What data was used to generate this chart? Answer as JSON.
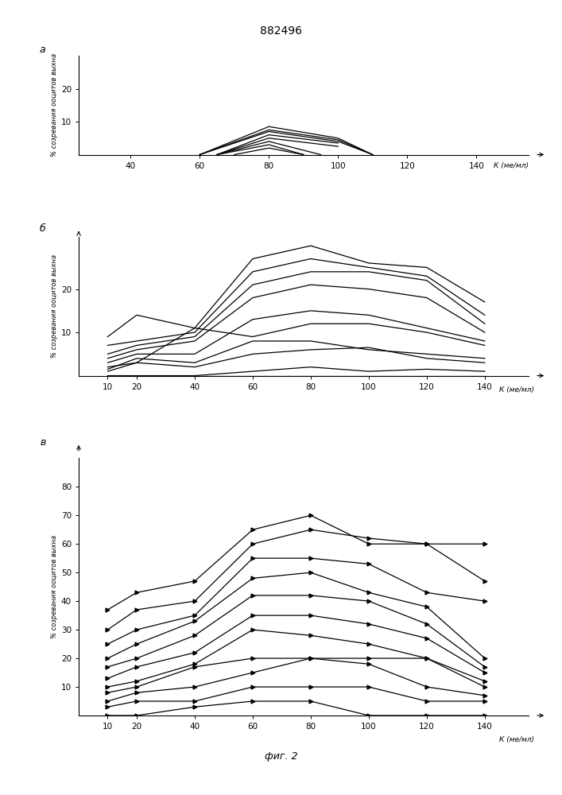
{
  "title": "882496",
  "fig_label": "фиг. 2",
  "ylabel": "% созревания ооцитов выхна",
  "xlabel": "К (ме/мл)",
  "panel_labels": [
    "а",
    "б",
    "в"
  ],
  "panel_a": {
    "xlim": [
      25,
      155
    ],
    "ylim": [
      0,
      30
    ],
    "xticks": [
      40,
      60,
      80,
      100,
      120,
      140
    ],
    "yticks": [
      10,
      20
    ],
    "lines": [
      {
        "x": [
          60,
          80,
          100,
          110
        ],
        "y": [
          0,
          8.5,
          5,
          0
        ]
      },
      {
        "x": [
          60,
          80,
          100,
          110
        ],
        "y": [
          0,
          7.5,
          4.5,
          0
        ]
      },
      {
        "x": [
          60,
          80,
          100,
          110
        ],
        "y": [
          0,
          7.0,
          4.0,
          0
        ]
      },
      {
        "x": [
          65,
          80,
          100
        ],
        "y": [
          0,
          6.0,
          3.5
        ]
      },
      {
        "x": [
          65,
          80,
          100
        ],
        "y": [
          0,
          5.0,
          2.5
        ]
      },
      {
        "x": [
          65,
          80,
          95
        ],
        "y": [
          0,
          4.0,
          0
        ]
      },
      {
        "x": [
          65,
          80,
          90
        ],
        "y": [
          0,
          3.0,
          0
        ]
      },
      {
        "x": [
          70,
          80,
          90
        ],
        "y": [
          0,
          2.0,
          0
        ]
      }
    ]
  },
  "panel_b": {
    "xlim": [
      0,
      155
    ],
    "ylim": [
      0,
      32
    ],
    "xticks": [
      10,
      20,
      40,
      60,
      80,
      100,
      120,
      140
    ],
    "yticks": [
      10,
      20
    ],
    "lines": [
      {
        "x": [
          10,
          20,
          40,
          60,
          80,
          100,
          120,
          140
        ],
        "y": [
          9,
          14,
          11,
          27,
          30,
          26,
          25,
          17
        ]
      },
      {
        "x": [
          10,
          20,
          40,
          60,
          80,
          100,
          120,
          140
        ],
        "y": [
          7,
          8,
          10,
          24,
          27,
          25,
          23,
          14
        ]
      },
      {
        "x": [
          10,
          20,
          40,
          60,
          80,
          100,
          120,
          140
        ],
        "y": [
          5,
          7,
          9,
          21,
          24,
          24,
          22,
          12
        ]
      },
      {
        "x": [
          10,
          20,
          40,
          60,
          80,
          100,
          120,
          140
        ],
        "y": [
          4,
          6,
          8,
          18,
          21,
          20,
          18,
          10
        ]
      },
      {
        "x": [
          10,
          20,
          40,
          60,
          80,
          100,
          120,
          140
        ],
        "y": [
          3,
          5,
          5,
          13,
          15,
          14,
          11,
          8
        ]
      },
      {
        "x": [
          10,
          20,
          40,
          60,
          80,
          100,
          120,
          140
        ],
        "y": [
          2,
          3,
          11,
          9,
          12,
          12,
          10,
          7
        ]
      },
      {
        "x": [
          10,
          20,
          40,
          60,
          80,
          100,
          120,
          140
        ],
        "y": [
          1.5,
          4,
          3,
          8,
          8,
          6,
          5,
          4
        ]
      },
      {
        "x": [
          10,
          20,
          40,
          60,
          80,
          100,
          120,
          140
        ],
        "y": [
          1,
          3,
          2,
          5,
          6,
          6.5,
          4,
          3
        ]
      },
      {
        "x": [
          10,
          20,
          40,
          60,
          80,
          100,
          120,
          140
        ],
        "y": [
          0,
          0,
          0,
          1,
          2,
          1,
          1.5,
          1
        ]
      },
      {
        "x": [
          10,
          20,
          40,
          60,
          80,
          100,
          120,
          140
        ],
        "y": [
          0,
          0,
          0,
          0,
          0,
          0,
          0,
          0
        ]
      }
    ]
  },
  "panel_c": {
    "xlim": [
      0,
      155
    ],
    "ylim": [
      0,
      90
    ],
    "xticks": [
      10,
      20,
      40,
      60,
      80,
      100,
      120,
      140
    ],
    "yticks": [
      10,
      20,
      30,
      40,
      50,
      60,
      70,
      80
    ],
    "lines": [
      {
        "x": [
          10,
          20,
          40,
          60,
          80,
          100,
          120,
          140
        ],
        "y": [
          37,
          43,
          47,
          65,
          70,
          60,
          60,
          60
        ],
        "marker": true
      },
      {
        "x": [
          10,
          20,
          40,
          60,
          80,
          100,
          120,
          140
        ],
        "y": [
          30,
          37,
          40,
          60,
          65,
          62,
          60,
          47
        ],
        "marker": true
      },
      {
        "x": [
          10,
          20,
          40,
          60,
          80,
          100,
          120,
          140
        ],
        "y": [
          25,
          30,
          35,
          55,
          55,
          53,
          43,
          40
        ],
        "marker": true
      },
      {
        "x": [
          10,
          20,
          40,
          60,
          80,
          100,
          120,
          140
        ],
        "y": [
          20,
          25,
          33,
          48,
          50,
          43,
          38,
          20
        ],
        "marker": true
      },
      {
        "x": [
          10,
          20,
          40,
          60,
          80,
          100,
          120,
          140
        ],
        "y": [
          17,
          20,
          28,
          42,
          42,
          40,
          32,
          17
        ],
        "marker": true
      },
      {
        "x": [
          10,
          20,
          40,
          60,
          80,
          100,
          120,
          140
        ],
        "y": [
          13,
          17,
          22,
          35,
          35,
          32,
          27,
          15
        ],
        "marker": true
      },
      {
        "x": [
          10,
          20,
          40,
          60,
          80,
          100,
          120,
          140
        ],
        "y": [
          10,
          12,
          18,
          30,
          28,
          25,
          20,
          12
        ],
        "marker": true
      },
      {
        "x": [
          10,
          20,
          40,
          60,
          80,
          100,
          120,
          140
        ],
        "y": [
          8,
          10,
          17,
          20,
          20,
          20,
          20,
          10
        ],
        "marker": true
      },
      {
        "x": [
          10,
          20,
          40,
          60,
          80,
          100,
          120,
          140
        ],
        "y": [
          5,
          8,
          10,
          15,
          20,
          18,
          10,
          7
        ],
        "marker": true
      },
      {
        "x": [
          10,
          20,
          40,
          60,
          80,
          100,
          120,
          140
        ],
        "y": [
          3,
          5,
          5,
          10,
          10,
          10,
          5,
          5
        ],
        "marker": true
      },
      {
        "x": [
          10,
          20,
          40,
          60,
          80,
          100,
          120,
          140
        ],
        "y": [
          0,
          0,
          3,
          5,
          5,
          0,
          0,
          0
        ],
        "marker": true
      }
    ]
  }
}
